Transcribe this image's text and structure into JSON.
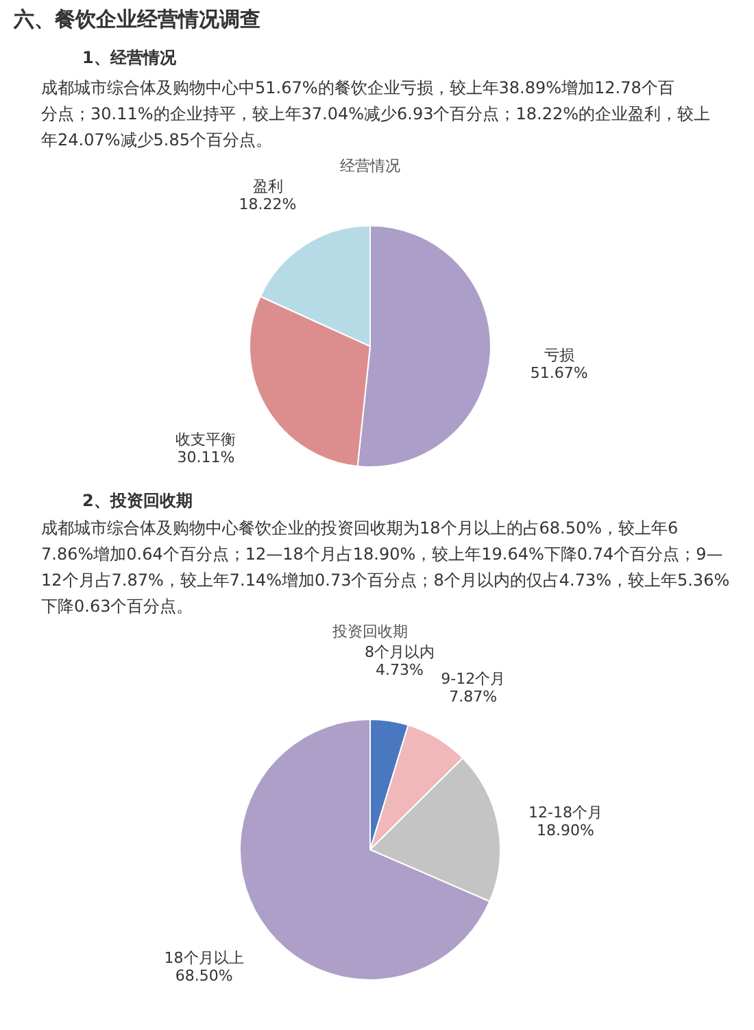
{
  "chart_data": [
    {
      "type": "pie",
      "title": "经营情况",
      "annotations": [
        "六、餐饮企业经营情况调查",
        "1、经营情况",
        "成都城市综合体及购物中心中51.67%的餐饮企业亏损，较上年38.89%增加12.78个百分点；30.11%的企业持平，较上年37.04%减少6.93个百分点；18.22%的企业盈利，较上年24.07%减少5.85个百分点。"
      ],
      "categories": [
        "亏损",
        "收支平衡",
        "盈利"
      ],
      "values": [
        51.67,
        30.11,
        18.22
      ],
      "value_labels": [
        "51.67%",
        "30.11%",
        "18.22%"
      ],
      "colors": [
        "#ab9ec8",
        "#dc8e8e",
        "#b7dbe6"
      ]
    },
    {
      "type": "pie",
      "title": "投资回收期",
      "annotations": [
        "2、投资回收期",
        "成都城市综合体及购物中心餐饮企业的投资回收期为18个月以上的占68.50%，较上年67.86%增加0.64个百分点；12—18个月占18.90%，较上年19.64%下降0.74个百分点；9—12个月占7.87%，较上年7.14%增加0.73个百分点；8个月以内的仅占4.73%，较上年5.36%下降0.63个百分点。"
      ],
      "categories": [
        "8个月以内",
        "9-12个月",
        "12-18个月",
        "18个月以上"
      ],
      "values": [
        4.73,
        7.87,
        18.9,
        68.5
      ],
      "value_labels": [
        "4.73%",
        "7.87%",
        "18.90%",
        "68.50%"
      ],
      "colors": [
        "#4a78c0",
        "#f0b8b8",
        "#c4c4c4",
        "#ad9fc8"
      ]
    }
  ]
}
